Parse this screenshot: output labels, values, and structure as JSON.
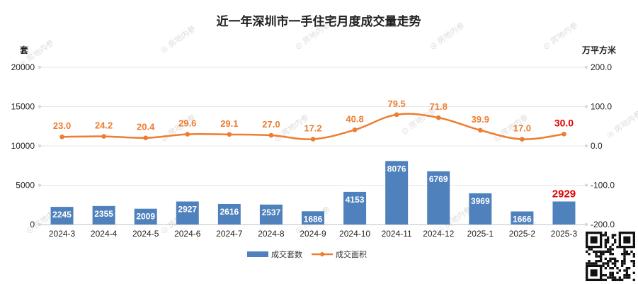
{
  "chart_data": {
    "type": "bar+line",
    "title": "近一年深圳市一手住宅月度成交量走势",
    "categories": [
      "2024-3",
      "2024-4",
      "2024-5",
      "2024-6",
      "2024-7",
      "2024-8",
      "2024-9",
      "2024-10",
      "2024-11",
      "2024-12",
      "2025-1",
      "2025-2",
      "2025-3"
    ],
    "series": [
      {
        "name": "成交套数",
        "type": "bar",
        "axis": "left",
        "color": "#4f81bd",
        "values": [
          2245,
          2355,
          2009,
          2927,
          2616,
          2537,
          1686,
          4153,
          8076,
          6769,
          3969,
          1666,
          2929
        ]
      },
      {
        "name": "成交面积",
        "type": "line",
        "axis": "right",
        "color": "#ed7d31",
        "values": [
          23.0,
          24.2,
          20.4,
          29.6,
          29.1,
          27.0,
          17.2,
          40.8,
          79.5,
          71.8,
          39.9,
          17.0,
          30.0
        ]
      }
    ],
    "left_axis": {
      "unit": "套",
      "ylim": [
        0,
        20000
      ],
      "ticks": [
        "0",
        "5000",
        "10000",
        "15000",
        "20000"
      ]
    },
    "right_axis": {
      "unit": "万平方米",
      "ylim": [
        -200,
        200
      ],
      "ticks": [
        "-200.0",
        "-100.0",
        "0.0",
        "100.0",
        "200.0"
      ]
    },
    "highlight_last": {
      "bar_color": "#e00000",
      "line_color": "#e00000"
    },
    "grid": true,
    "legend": "bottom-center"
  },
  "watermark": "房地内参"
}
